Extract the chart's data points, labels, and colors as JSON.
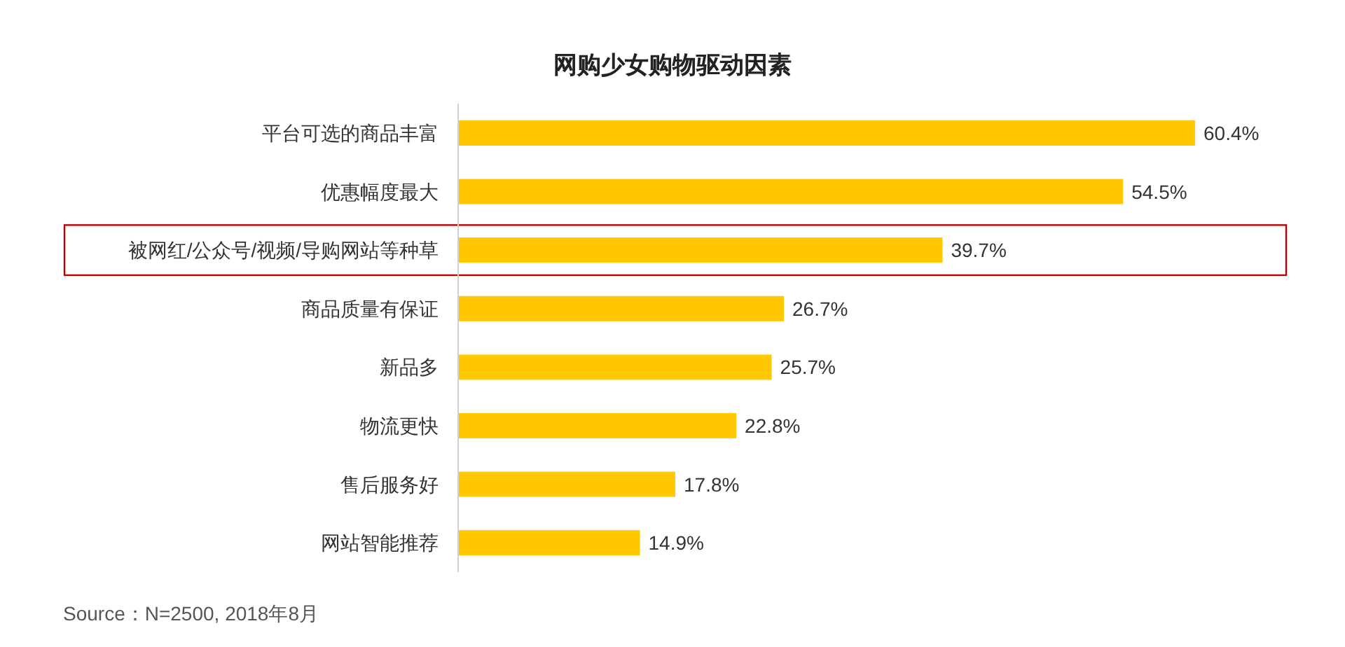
{
  "chart_data": {
    "type": "bar",
    "orientation": "horizontal",
    "title": "网购少女购物驱动因素",
    "categories": [
      "平台可选的商品丰富",
      "优惠幅度最大",
      "被网红/公众号/视频/导购网站等种草",
      "商品质量有保证",
      "新品多",
      "物流更快",
      "售后服务好",
      "网站智能推荐"
    ],
    "values": [
      60.4,
      54.5,
      39.7,
      26.7,
      25.7,
      22.8,
      17.8,
      14.9
    ],
    "color": "#ffc800",
    "value_labels": [
      "60.4%",
      "54.5%",
      "39.7%",
      "26.7%",
      "25.7%",
      "22.8%",
      "17.8%",
      "14.9%"
    ],
    "annotations": [
      "Source：N=2500, 2018年8月"
    ]
  }
}
